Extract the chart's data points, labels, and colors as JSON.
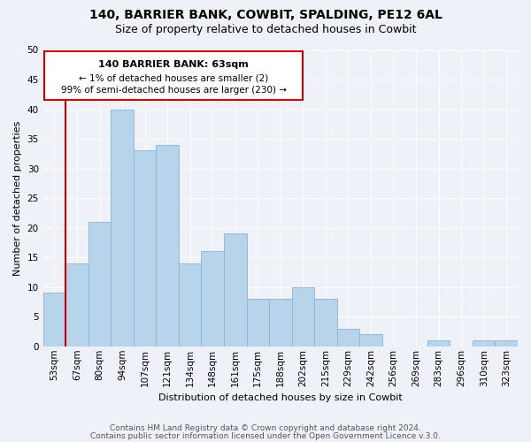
{
  "title": "140, BARRIER BANK, COWBIT, SPALDING, PE12 6AL",
  "subtitle": "Size of property relative to detached houses in Cowbit",
  "xlabel": "Distribution of detached houses by size in Cowbit",
  "ylabel": "Number of detached properties",
  "footer_line1": "Contains HM Land Registry data © Crown copyright and database right 2024.",
  "footer_line2": "Contains public sector information licensed under the Open Government Licence v.3.0.",
  "bin_labels": [
    "53sqm",
    "67sqm",
    "80sqm",
    "94sqm",
    "107sqm",
    "121sqm",
    "134sqm",
    "148sqm",
    "161sqm",
    "175sqm",
    "188sqm",
    "202sqm",
    "215sqm",
    "229sqm",
    "242sqm",
    "256sqm",
    "269sqm",
    "283sqm",
    "296sqm",
    "310sqm",
    "323sqm"
  ],
  "bar_values": [
    9,
    14,
    21,
    40,
    33,
    34,
    14,
    16,
    19,
    8,
    8,
    10,
    8,
    3,
    2,
    0,
    0,
    1,
    0,
    1,
    1
  ],
  "bar_color": "#b8d4ea",
  "bar_edge_color": "#8ab4d4",
  "highlight_color": "#cc0000",
  "ylim": [
    0,
    50
  ],
  "yticks": [
    0,
    5,
    10,
    15,
    20,
    25,
    30,
    35,
    40,
    45,
    50
  ],
  "annotation_title": "140 BARRIER BANK: 63sqm",
  "annotation_line1": "← 1% of detached houses are smaller (2)",
  "annotation_line2": "99% of semi-detached houses are larger (230) →",
  "bg_color": "#eef2f8",
  "grid_color": "#ffffff",
  "title_fontsize": 10,
  "subtitle_fontsize": 9,
  "axis_label_fontsize": 8,
  "tick_fontsize": 7.5,
  "footer_fontsize": 6.5
}
